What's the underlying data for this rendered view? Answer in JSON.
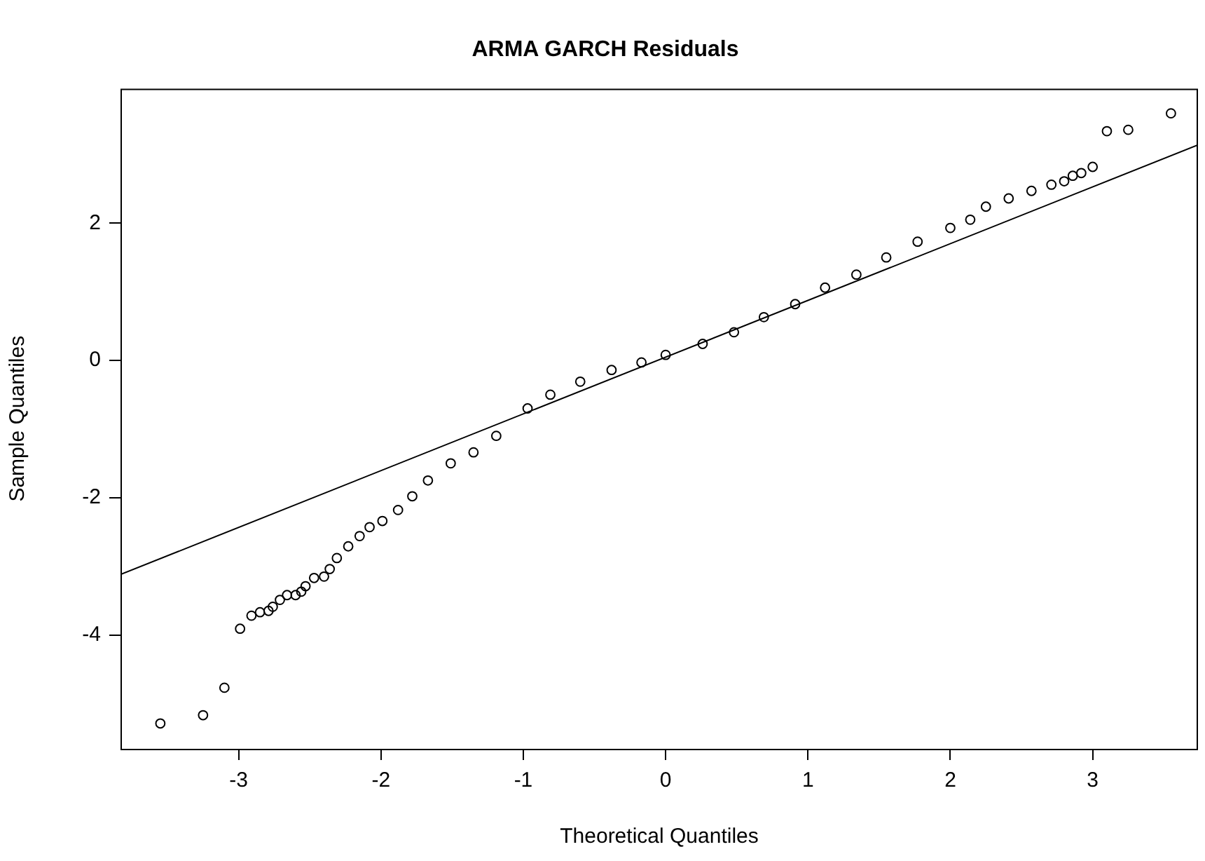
{
  "chart_data": {
    "type": "scatter",
    "title": "ARMA GARCH Residuals",
    "xlabel": "Theoretical Quantiles",
    "ylabel": "Sample Quantiles",
    "xlim": [
      -3.83,
      3.74
    ],
    "ylim": [
      -5.66,
      3.96
    ],
    "xticks": [
      -3,
      -2,
      -1,
      0,
      1,
      2,
      3
    ],
    "yticks": [
      -4,
      -2,
      0,
      2
    ],
    "marker": "circle",
    "grid": false,
    "legend": false,
    "series": [
      {
        "color": "#000000",
        "x": [
          -3.55,
          -3.25,
          -3.1,
          -2.99,
          -2.91,
          -2.85,
          -2.79,
          -2.76,
          -2.71,
          -2.66,
          -2.6,
          -2.56,
          -2.53,
          -2.47,
          -2.4,
          -2.36,
          -2.31,
          -2.23,
          -2.15,
          -2.08,
          -1.99,
          -1.88,
          -1.78,
          -1.67,
          -1.51,
          -1.35,
          -1.19,
          -0.97,
          -0.81,
          -0.6,
          -0.38,
          -0.17,
          0,
          0.26,
          0.48,
          0.69,
          0.91,
          1.12,
          1.34,
          1.55,
          1.77,
          2.0,
          2.14,
          2.25,
          2.41,
          2.57,
          2.71,
          2.8,
          2.86,
          2.92,
          3.0,
          3.1,
          3.25,
          3.55
        ],
        "values": [
          -5.29,
          -5.17,
          -4.77,
          -3.91,
          -3.72,
          -3.67,
          -3.65,
          -3.59,
          -3.49,
          -3.42,
          -3.42,
          -3.37,
          -3.29,
          -3.17,
          -3.15,
          -3.04,
          -2.88,
          -2.71,
          -2.56,
          -2.43,
          -2.34,
          -2.18,
          -1.98,
          -1.75,
          -1.5,
          -1.34,
          -1.1,
          -0.7,
          -0.5,
          -0.31,
          -0.14,
          -0.03,
          0.08,
          0.24,
          0.41,
          0.63,
          0.82,
          1.06,
          1.25,
          1.5,
          1.73,
          1.93,
          2.05,
          2.24,
          2.36,
          2.47,
          2.56,
          2.61,
          2.69,
          2.73,
          2.82,
          3.34,
          3.36,
          3.6
        ]
      },
      {
        "type": "line",
        "color": "#000000",
        "x": [
          -3.83,
          3.74
        ],
        "values": [
          -3.12,
          3.14
        ],
        "marker": "none",
        "line_style": "solid"
      }
    ]
  }
}
